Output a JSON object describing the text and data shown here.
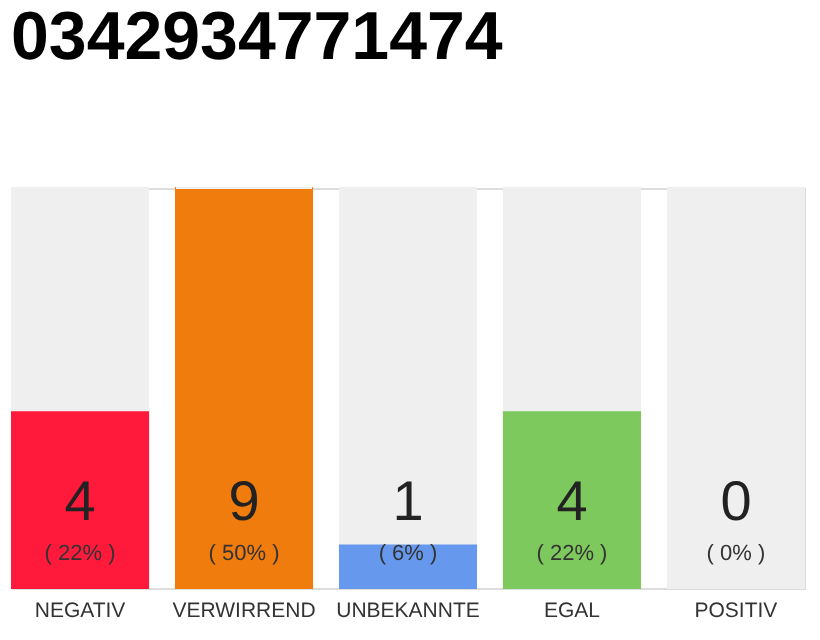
{
  "chart_data": {
    "type": "bar",
    "title": "0342934771474",
    "categories": [
      "NEGATIV",
      "VERWIRREND",
      "UNBEKANNTE",
      "EGAL",
      "POSITIV"
    ],
    "stacked": true,
    "series": [
      {
        "values": [
          4,
          9,
          1,
          4,
          0
        ],
        "colors": [
          "#ff1a3c",
          "#f07c0e",
          "#6699ee",
          "#7dc95d",
          "#33aa44"
        ],
        "value_labels": [
          "4",
          "9",
          "1",
          "4",
          "0"
        ]
      },
      {
        "values": [
          5,
          0,
          8,
          5,
          9
        ],
        "color": "#efefef"
      }
    ],
    "annotations": [
      "( 22% )",
      "( 50% )",
      "( 6% )",
      "( 22% )",
      "( 0% )"
    ]
  }
}
